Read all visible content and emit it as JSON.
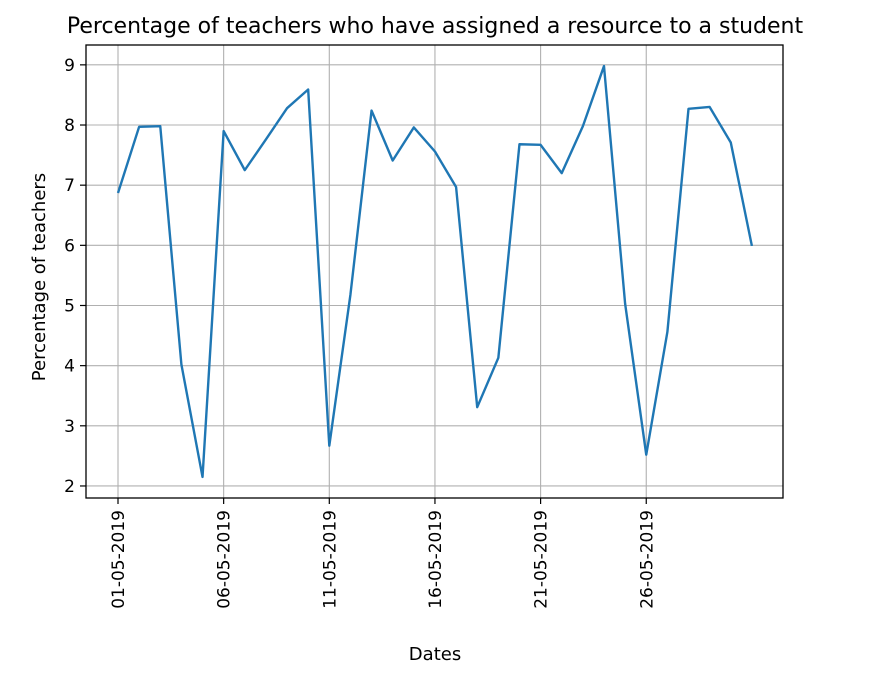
{
  "chart_data": {
    "type": "line",
    "title": "Percentage of teachers who have assigned a resource to a student",
    "xlabel": "Dates",
    "ylabel": "Percentage of teachers",
    "x": [
      "01-05-2019",
      "02-05-2019",
      "03-05-2019",
      "04-05-2019",
      "05-05-2019",
      "06-05-2019",
      "07-05-2019",
      "08-05-2019",
      "09-05-2019",
      "10-05-2019",
      "11-05-2019",
      "12-05-2019",
      "13-05-2019",
      "14-05-2019",
      "15-05-2019",
      "16-05-2019",
      "17-05-2019",
      "18-05-2019",
      "19-05-2019",
      "20-05-2019",
      "21-05-2019",
      "22-05-2019",
      "23-05-2019",
      "24-05-2019",
      "25-05-2019",
      "26-05-2019",
      "27-05-2019",
      "28-05-2019",
      "29-05-2019",
      "30-05-2019",
      "31-05-2019"
    ],
    "xticks": [
      "01-05-2019",
      "06-05-2019",
      "11-05-2019",
      "16-05-2019",
      "21-05-2019",
      "26-05-2019"
    ],
    "series": [
      {
        "values": [
          6.87,
          7.97,
          7.98,
          4.02,
          2.15,
          7.9,
          7.25,
          7.76,
          8.28,
          8.59,
          2.67,
          5.18,
          8.24,
          7.41,
          7.96,
          7.56,
          6.97,
          3.31,
          4.13,
          7.68,
          7.67,
          7.2,
          7.98,
          8.98,
          5.03,
          2.52,
          4.56,
          8.27,
          8.3,
          7.71,
          5.99
        ],
        "color": "#1f77b4"
      }
    ],
    "ylim": [
      1.8,
      9.33
    ],
    "yticks": [
      2,
      3,
      4,
      5,
      6,
      7,
      8,
      9
    ],
    "grid": true,
    "legend": "none"
  }
}
